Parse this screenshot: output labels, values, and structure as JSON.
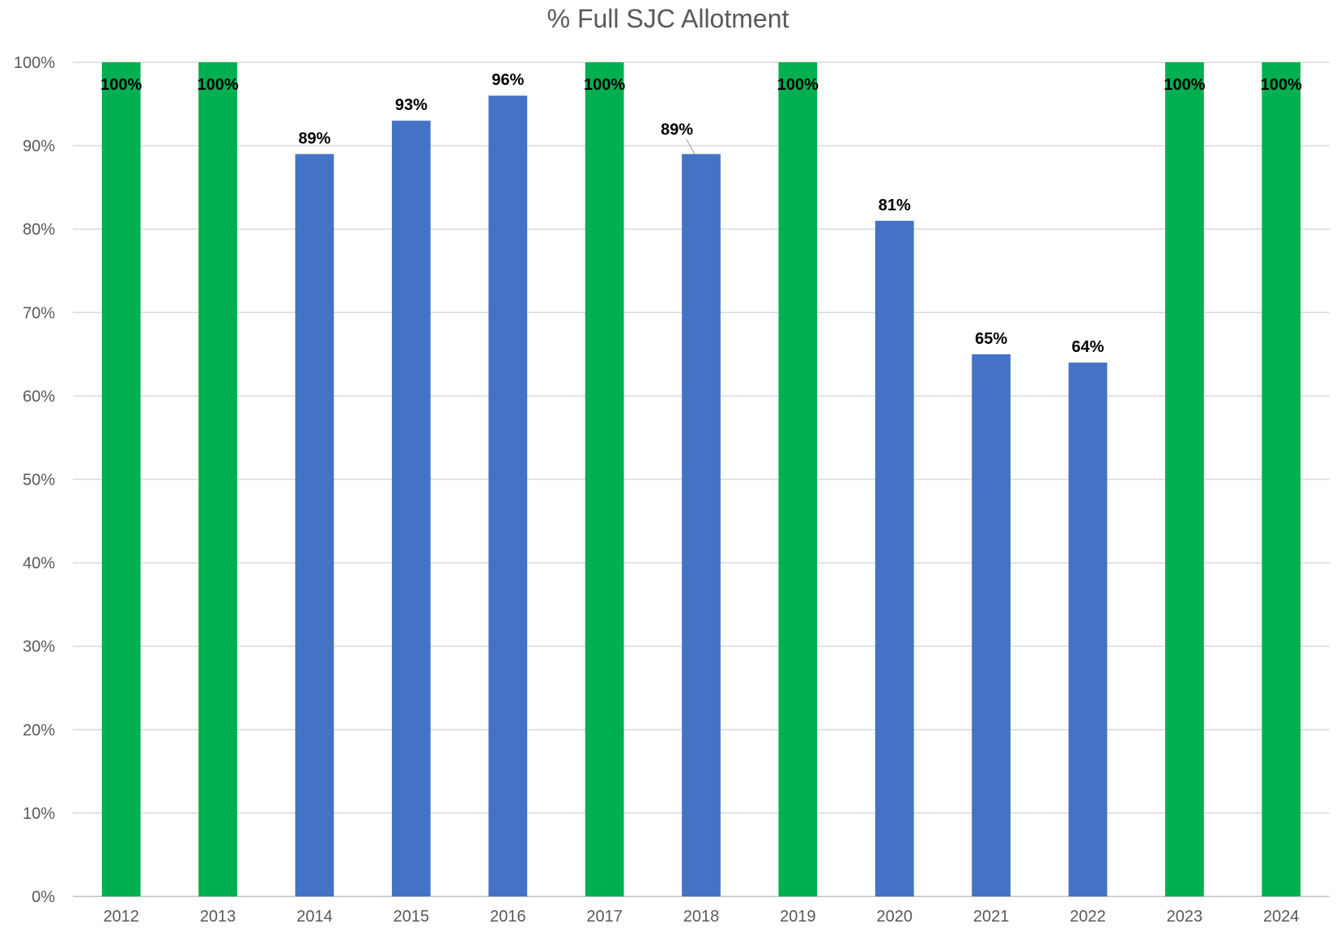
{
  "chart_data": {
    "type": "bar",
    "title": "% Full SJC Allotment",
    "xlabel": "",
    "ylabel": "",
    "ylim": [
      0,
      100
    ],
    "y_ticks": [
      "0%",
      "10%",
      "20%",
      "30%",
      "40%",
      "50%",
      "60%",
      "70%",
      "80%",
      "90%",
      "100%"
    ],
    "grid": true,
    "legend": "none",
    "categories": [
      "2012",
      "2013",
      "2014",
      "2015",
      "2016",
      "2017",
      "2018",
      "2019",
      "2020",
      "2021",
      "2022",
      "2023",
      "2024"
    ],
    "values": [
      100,
      100,
      89,
      93,
      96,
      100,
      89,
      100,
      81,
      65,
      64,
      100,
      100
    ],
    "data_labels": [
      "100%",
      "100%",
      "89%",
      "93%",
      "96%",
      "100%",
      "89%",
      "100%",
      "81%",
      "65%",
      "64%",
      "100%",
      "100%"
    ],
    "colors": {
      "full": "#00b050",
      "partial": "#4472c4"
    }
  }
}
